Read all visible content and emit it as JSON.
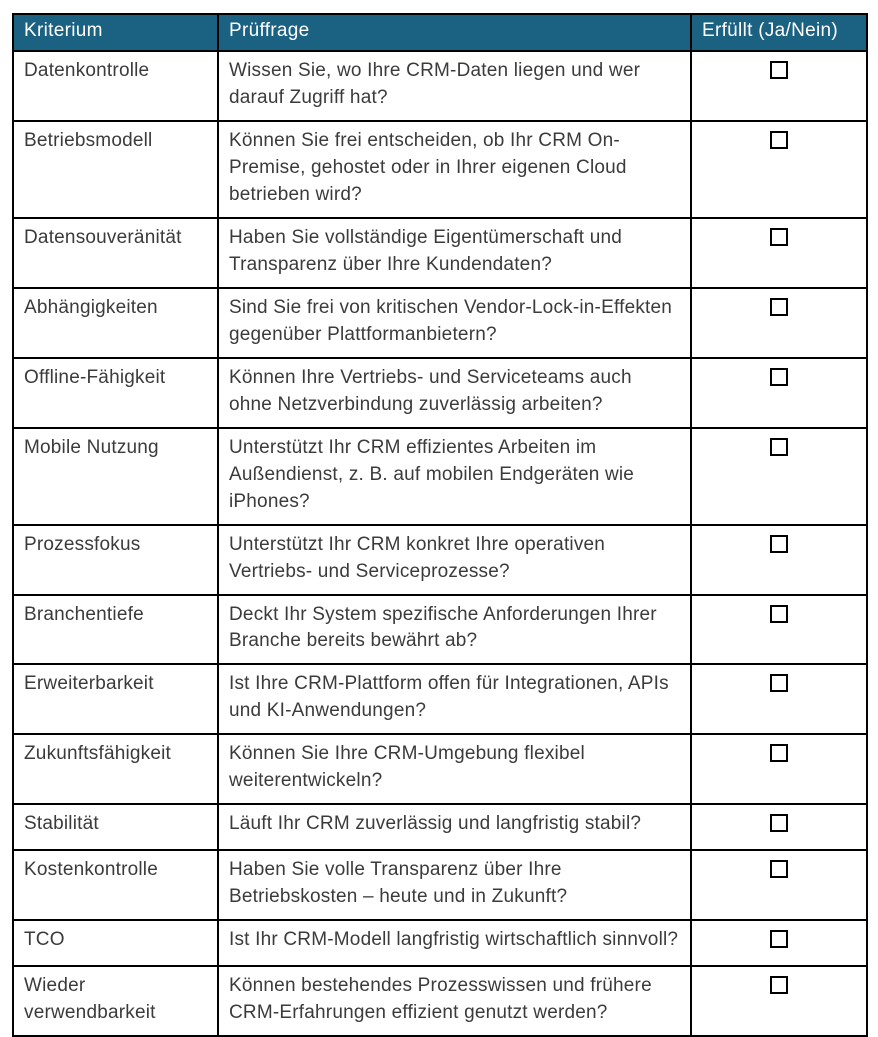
{
  "table": {
    "header": {
      "criterion": "Kriterium",
      "question": "Prüffrage",
      "fulfilled": "Erfüllt (Ja/Nein)"
    },
    "colors": {
      "header_bg": "#1B6182",
      "header_text": "#ffffff",
      "body_text": "#3b3b3b",
      "border": "#000000"
    },
    "rows": [
      {
        "criterion": "Datenkontrolle",
        "question": "Wissen Sie, wo Ihre CRM-Daten liegen und wer darauf Zugriff hat?",
        "checkbox": "unchecked"
      },
      {
        "criterion": "Betriebsmodell",
        "question": "Können Sie frei entscheiden, ob Ihr CRM On-Premise, gehostet oder in Ihrer eigenen Cloud betrieben wird?",
        "checkbox": "unchecked"
      },
      {
        "criterion": "Datensouveränität",
        "question": "Haben Sie vollständige Eigentümerschaft und Transparenz über Ihre Kundendaten?",
        "checkbox": "unchecked"
      },
      {
        "criterion": "Abhängigkeiten",
        "question": "Sind Sie frei von kritischen Vendor-Lock-in-Effekten gegenüber Plattformanbietern?",
        "checkbox": "unchecked"
      },
      {
        "criterion": "Offline-Fähigkeit",
        "question": "Können Ihre Vertriebs- und Serviceteams auch ohne Netzverbindung zuverlässig arbeiten?",
        "checkbox": "unchecked"
      },
      {
        "criterion": "Mobile Nutzung",
        "question": "Unterstützt Ihr CRM effizientes Arbeiten im Außendienst, z. B. auf mobilen Endgeräten wie iPhones?",
        "checkbox": "unchecked"
      },
      {
        "criterion": "Prozessfokus",
        "question": "Unterstützt Ihr CRM konkret Ihre operativen Vertriebs- und Serviceprozesse?",
        "checkbox": "unchecked"
      },
      {
        "criterion": "Branchentiefe",
        "question": "Deckt Ihr System spezifische Anforderungen Ihrer Branche bereits bewährt ab?",
        "checkbox": "unchecked"
      },
      {
        "criterion": "Erweiterbarkeit",
        "question": "Ist Ihre CRM-Plattform offen für Integrationen, APIs und KI-Anwendungen?",
        "checkbox": "unchecked"
      },
      {
        "criterion": "Zukunftsfähigkeit",
        "question": "Können Sie Ihre CRM-Umgebung flexibel weiterentwickeln?",
        "checkbox": "unchecked"
      },
      {
        "criterion": "Stabilität",
        "question": "Läuft Ihr CRM zuverlässig und langfristig stabil?",
        "checkbox": "unchecked"
      },
      {
        "criterion": "Kostenkontrolle",
        "question": "Haben Sie volle Transparenz über Ihre Betriebskosten – heute und in Zukunft?",
        "checkbox": "unchecked"
      },
      {
        "criterion": "TCO",
        "question": "Ist Ihr CRM-Modell langfristig wirtschaftlich sinnvoll?",
        "checkbox": "unchecked"
      },
      {
        "criterion": "Wieder verwendbarkeit",
        "question": "Können bestehendes Prozesswissen und frühere CRM-Erfahrungen effizient genutzt werden?",
        "checkbox": "unchecked"
      }
    ]
  }
}
